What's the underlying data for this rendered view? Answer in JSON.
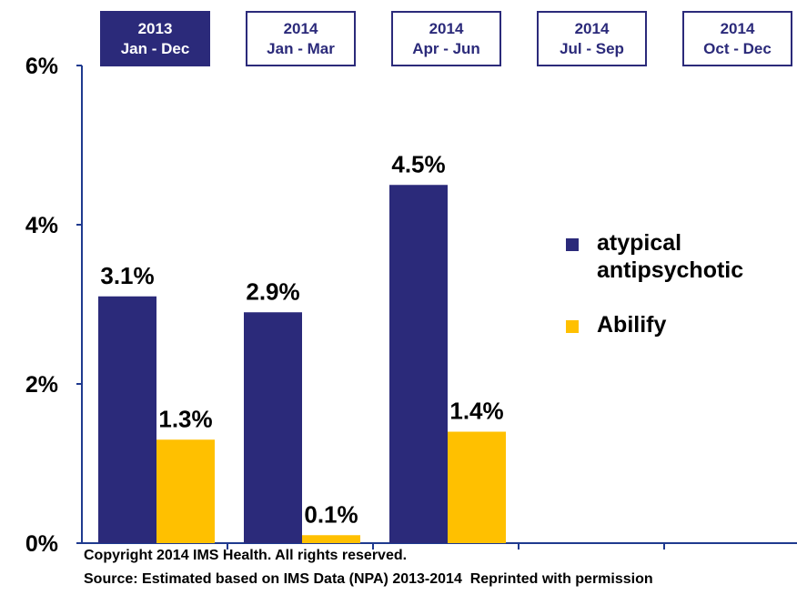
{
  "chart_data": {
    "type": "bar",
    "categories": [
      "2013\nJan - Dec",
      "2014\nJan - Mar",
      "2014\nApr - Jun",
      "2014\nJul - Sep",
      "2014\nOct - Dec"
    ],
    "highlight": 0,
    "series": [
      {
        "name": "atypical antipsychotic",
        "color": "#2b2a7a",
        "values": [
          3.1,
          2.9,
          4.5,
          null,
          null
        ],
        "value_labels": [
          "3.1%",
          "2.9%",
          "4.5%",
          null,
          null
        ]
      },
      {
        "name": "Abilify",
        "color": "#ffc000",
        "values": [
          1.3,
          0.1,
          1.4,
          null,
          null
        ],
        "value_labels": [
          "1.3%",
          "0.1%",
          "1.4%",
          null,
          null
        ]
      }
    ],
    "ylim": [
      0,
      6
    ],
    "yticks": [
      {
        "value": 0,
        "label": "0%"
      },
      {
        "value": 2,
        "label": "2%"
      },
      {
        "value": 4,
        "label": "4%"
      },
      {
        "value": 6,
        "label": "6%"
      }
    ],
    "grid": false,
    "legend": "right",
    "footnotes": [
      "Copyright 2014 IMS Health. All rights reserved.",
      "Source: Estimated based on IMS Data (NPA) 2013-2014  Reprinted with permission"
    ]
  }
}
